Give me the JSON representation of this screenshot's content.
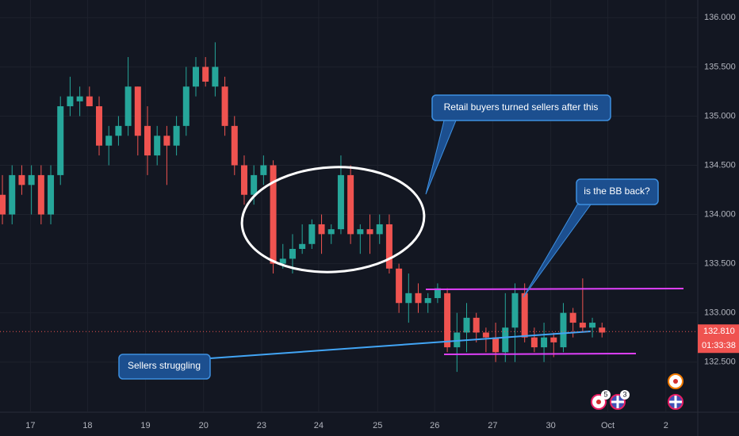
{
  "chart_data": {
    "type": "candlestick",
    "open": [
      134.2,
      134.0,
      134.4,
      134.3,
      134.4,
      134.0,
      134.4,
      135.1,
      135.15,
      135.2,
      135.1,
      134.7,
      134.8,
      134.9,
      135.3,
      134.9,
      134.6,
      134.8,
      134.7,
      134.9,
      135.3,
      135.5,
      135.3,
      135.3,
      134.9,
      134.5,
      134.2,
      134.4,
      134.5,
      133.5,
      133.55,
      133.65,
      133.7,
      133.9,
      133.8,
      133.85,
      134.4,
      133.8,
      133.85,
      133.8,
      133.9,
      133.45,
      133.1,
      133.2,
      133.1,
      133.15,
      133.2,
      132.65,
      132.8,
      132.95,
      132.8,
      132.75,
      132.6,
      132.85,
      133.2,
      132.75,
      132.65,
      132.75,
      132.65,
      133.0,
      132.9,
      132.85,
      132.85
    ],
    "high": [
      134.4,
      134.5,
      134.5,
      134.5,
      134.5,
      134.5,
      135.2,
      135.4,
      135.3,
      135.3,
      135.2,
      134.9,
      135.0,
      135.6,
      135.3,
      135.1,
      134.9,
      134.9,
      135.0,
      135.5,
      135.6,
      135.6,
      135.75,
      135.4,
      135.0,
      134.6,
      134.5,
      134.6,
      134.55,
      133.7,
      133.8,
      133.9,
      133.95,
      134.0,
      133.9,
      134.6,
      134.5,
      133.9,
      134.0,
      134.0,
      134.0,
      133.5,
      133.4,
      133.3,
      133.2,
      133.3,
      133.25,
      133.0,
      133.1,
      133.0,
      132.85,
      132.9,
      133.2,
      133.3,
      133.3,
      132.85,
      132.9,
      132.8,
      133.1,
      133.05,
      133.35,
      132.95,
      132.9
    ],
    "low": [
      133.9,
      133.9,
      134.2,
      134.0,
      133.9,
      133.9,
      134.3,
      135.0,
      135.0,
      135.1,
      134.6,
      134.5,
      134.7,
      134.8,
      134.6,
      134.4,
      134.5,
      134.3,
      134.6,
      134.8,
      135.2,
      135.3,
      135.2,
      134.8,
      134.4,
      134.1,
      134.1,
      134.3,
      133.4,
      133.45,
      133.4,
      133.6,
      133.65,
      133.6,
      133.7,
      133.8,
      133.7,
      133.6,
      133.6,
      133.7,
      133.4,
      133.0,
      132.9,
      133.0,
      133.0,
      133.1,
      132.6,
      132.4,
      132.6,
      132.7,
      132.6,
      132.5,
      132.5,
      132.5,
      132.7,
      132.6,
      132.5,
      132.55,
      132.6,
      132.75,
      132.8,
      132.75,
      132.75
    ],
    "close": [
      134.0,
      134.4,
      134.3,
      134.4,
      134.0,
      134.4,
      135.1,
      135.2,
      135.2,
      135.1,
      134.7,
      134.8,
      134.9,
      135.3,
      134.8,
      134.6,
      134.8,
      134.7,
      134.9,
      135.3,
      135.5,
      135.35,
      135.5,
      134.9,
      134.5,
      134.2,
      134.4,
      134.5,
      133.5,
      133.55,
      133.65,
      133.7,
      133.9,
      133.8,
      133.85,
      134.4,
      133.8,
      133.85,
      133.8,
      133.9,
      133.45,
      133.1,
      133.2,
      133.1,
      133.15,
      133.25,
      132.65,
      132.8,
      132.95,
      132.8,
      132.75,
      132.6,
      132.85,
      133.2,
      132.75,
      132.65,
      132.75,
      132.7,
      133.0,
      132.9,
      132.85,
      132.9,
      132.8
    ],
    "up_color": "#26a69a",
    "down_color": "#ef5350",
    "xlim": [
      -0.25,
      71.9
    ],
    "xticks": [
      {
        "value": 2.9,
        "label": "17"
      },
      {
        "value": 8.8,
        "label": "18"
      },
      {
        "value": 14.8,
        "label": "19"
      },
      {
        "value": 20.8,
        "label": "20"
      },
      {
        "value": 26.8,
        "label": "23"
      },
      {
        "value": 32.7,
        "label": "24"
      },
      {
        "value": 38.8,
        "label": "25"
      },
      {
        "value": 44.7,
        "label": "26"
      },
      {
        "value": 50.7,
        "label": "27"
      },
      {
        "value": 56.7,
        "label": "30"
      },
      {
        "value": 62.6,
        "label": "Oct"
      },
      {
        "value": 68.6,
        "label": "2"
      }
    ],
    "ylim": [
      131.99,
      136.18
    ],
    "yticks": [
      {
        "value": 132.5,
        "label": "132.500"
      },
      {
        "value": 133,
        "label": "133.000"
      },
      {
        "value": 133.5,
        "label": "133.500"
      },
      {
        "value": 134,
        "label": "134.000"
      },
      {
        "value": 134.5,
        "label": "134.500"
      },
      {
        "value": 135,
        "label": "135.000"
      },
      {
        "value": 135.5,
        "label": "135.500"
      },
      {
        "value": 136,
        "label": "136.000"
      }
    ],
    "grid": true,
    "last_price": {
      "value": 132.81,
      "label": "132.810",
      "countdown": "01:33:38"
    },
    "annotations": [
      "Retail buyers turned sellers after this",
      "is the BB back?",
      "Sellers struggling"
    ],
    "event_badges": [
      "5",
      "3"
    ]
  }
}
